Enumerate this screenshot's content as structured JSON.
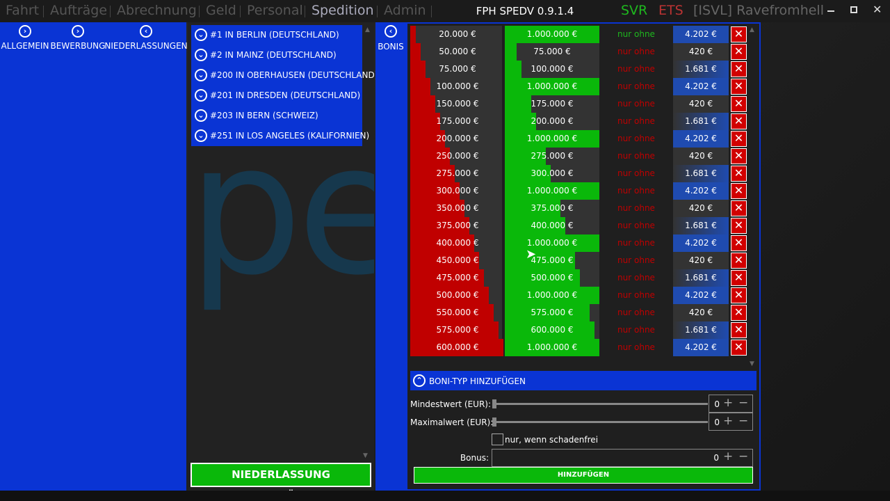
{
  "nav": {
    "items": [
      "Fahrt",
      "Aufträge",
      "Abrechnung",
      "Geld",
      "Personal",
      "Spedition",
      "Admin"
    ]
  },
  "app_title": "FPH SPEDV 0.9.1.4",
  "status": {
    "svr": "SVR",
    "ets": "ETS",
    "user": "[ISVL] Ravefromhell"
  },
  "sidebar": {
    "buttons": [
      "ALLGEMEIN",
      "BEWERBUNG",
      "NIEDERLASSUNGEN"
    ]
  },
  "branches": {
    "items": [
      "#1 IN BERLIN (DEUTSCHLAND)",
      "#2 IN MAINZ (DEUTSCHLAND)",
      "#200 IN OBERHAUSEN (DEUTSCHLAND)",
      "#201 IN DRESDEN (DEUTSCHLAND)",
      "#203 IN BERN (SCHWEIZ)",
      "#251 IN LOS ANGELES (KALIFORNIEN)"
    ],
    "add_button": "NIEDERLASSUNG HINZUFÜGEN"
  },
  "watermark": "pe",
  "bonis_button": "BONIS",
  "bonus_table": {
    "rows": [
      [
        "20.000 €",
        "1.000.000 €",
        "nur ohne Schaden",
        "4.202 €"
      ],
      [
        "50.000 €",
        "75.000 €",
        "nur ohne Schaden",
        "420 €"
      ],
      [
        "75.000 €",
        "100.000 €",
        "nur ohne Schaden",
        "1.681 €"
      ],
      [
        "100.000 €",
        "1.000.000 €",
        "nur ohne Schaden",
        "4.202 €"
      ],
      [
        "150.000 €",
        "175.000 €",
        "nur ohne Schaden",
        "420 €"
      ],
      [
        "175.000 €",
        "200.000 €",
        "nur ohne Schaden",
        "1.681 €"
      ],
      [
        "200.000 €",
        "1.000.000 €",
        "nur ohne Schaden",
        "4.202 €"
      ],
      [
        "250.000 €",
        "275.000 €",
        "nur ohne Schaden",
        "420 €"
      ],
      [
        "275.000 €",
        "300.000 €",
        "nur ohne Schaden",
        "1.681 €"
      ],
      [
        "300.000 €",
        "1.000.000 €",
        "nur ohne Schaden",
        "4.202 €"
      ],
      [
        "350.000 €",
        "375.000 €",
        "nur ohne Schaden",
        "420 €"
      ],
      [
        "375.000 €",
        "400.000 €",
        "nur ohne Schaden",
        "1.681 €"
      ],
      [
        "400.000 €",
        "1.000.000 €",
        "nur ohne Schaden",
        "4.202 €"
      ],
      [
        "450.000 €",
        "475.000 €",
        "nur ohne Schaden",
        "420 €"
      ],
      [
        "475.000 €",
        "500.000 €",
        "nur ohne Schaden",
        "1.681 €"
      ],
      [
        "500.000 €",
        "1.000.000 €",
        "nur ohne Schaden",
        "4.202 €"
      ],
      [
        "550.000 €",
        "575.000 €",
        "nur ohne Schaden",
        "420 €"
      ],
      [
        "575.000 €",
        "600.000 €",
        "nur ohne Schaden",
        "1.681 €"
      ],
      [
        "600.000 €",
        "1.000.000 €",
        "nur ohne Schaden",
        "4.202 €"
      ]
    ]
  },
  "form": {
    "title": "BONI-TYP HINZUFÜGEN",
    "min_label": "Mindestwert (EUR):",
    "min_value": 0,
    "max_label": "Maximalwert (EUR):",
    "max_value": 0,
    "checkbox_label": "nur, wenn schadenfrei",
    "bonus_label": "Bonus:",
    "bonus_value": 0,
    "submit": "HINZUFÜGEN"
  }
}
